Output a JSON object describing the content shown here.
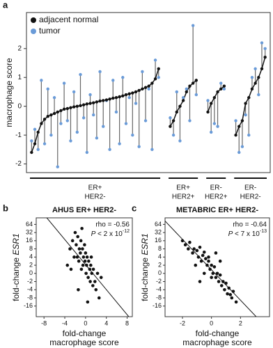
{
  "chart_data": [
    {
      "type": "paired",
      "panel": "a",
      "ylabel": "macrophage score",
      "ylim": [
        -2.3,
        3.25
      ],
      "yticks": [
        -2,
        -1,
        0,
        1,
        2
      ],
      "series": [
        {
          "name": "adjacent normal",
          "color": "#111111"
        },
        {
          "name": "tumor",
          "color": "#6a9bd8"
        }
      ],
      "groups": [
        {
          "label": [
            "ER+",
            "HER2-"
          ],
          "normal": [
            -1.6,
            -1.3,
            -0.9,
            -0.6,
            -0.45,
            -0.35,
            -0.3,
            -0.25,
            -0.2,
            -0.15,
            -0.1,
            -0.08,
            -0.05,
            -0.02,
            0,
            0.02,
            0.05,
            0.08,
            0.1,
            0.12,
            0.15,
            0.18,
            0.2,
            0.22,
            0.25,
            0.28,
            0.3,
            0.33,
            0.36,
            0.4,
            0.43,
            0.46,
            0.5,
            0.55,
            0.6,
            0.65,
            0.7,
            0.8,
            0.95,
            1.3
          ],
          "tumor": [
            -1.2,
            -0.8,
            -1.5,
            0.9,
            -1.3,
            0.6,
            -1.0,
            0.3,
            -2.1,
            -0.6,
            0.8,
            -0.5,
            -1.2,
            0.5,
            -0.9,
            1.1,
            -0.4,
            -1.6,
            0.4,
            -0.3,
            -1.1,
            1.2,
            -0.7,
            0.2,
            -1.5,
            0.9,
            -0.2,
            -1.3,
            1.0,
            -0.6,
            0.3,
            -1.0,
            0.1,
            -1.4,
            1.2,
            -0.5,
            0.6,
            -1.5,
            1.6,
            1.0
          ]
        },
        {
          "label": [
            "ER+",
            "HER2+"
          ],
          "normal": [
            -0.7,
            -0.5,
            -0.2,
            0,
            0.2,
            0.5,
            0.7,
            0.8,
            0.9
          ],
          "tumor": [
            -0.4,
            -1.0,
            0.5,
            -1.2,
            0.3,
            0.6,
            -0.5,
            2.8,
            0.4
          ]
        },
        {
          "label": [
            "ER-",
            "HER2+"
          ],
          "normal": [
            -0.2,
            0.1,
            0.3,
            0.5,
            0.6,
            0.7
          ],
          "tumor": [
            0.2,
            -0.9,
            -0.6,
            -0.7,
            0.8,
            0.6
          ]
        },
        {
          "label": [
            "ER-",
            "HER2-"
          ],
          "normal": [
            -1.0,
            -0.7,
            -0.5,
            0.1,
            0.3,
            0.6,
            0.8,
            1.0,
            1.3,
            1.7
          ],
          "tumor": [
            -0.5,
            -1.6,
            -1.4,
            -0.3,
            -1.0,
            1.0,
            1.3,
            0.4,
            2.2,
            2.0
          ]
        }
      ]
    },
    {
      "type": "scatter",
      "panel": "b",
      "title": "AHUS ER+ HER2-",
      "ylabel": [
        "fold-change",
        "ESR1"
      ],
      "xlabel": [
        "fold-change",
        "macrophage score"
      ],
      "annotation": {
        "rho": "rho = -0.56",
        "p_italic": "P",
        "p_text": " < 2 x 10",
        "p_exp": "-12"
      },
      "color": "#111111",
      "fit_line": true,
      "xlim": [
        -9.5,
        9
      ],
      "xticks": [
        -8,
        -4,
        0,
        4,
        8
      ],
      "ylim": [
        -5.3,
        6.8
      ],
      "yticks": [
        {
          "value": 6,
          "label": "64"
        },
        {
          "value": 5,
          "label": "32"
        },
        {
          "value": 4,
          "label": "16"
        },
        {
          "value": 3,
          "label": "8"
        },
        {
          "value": 2,
          "label": "4"
        },
        {
          "value": 1,
          "label": "2"
        },
        0,
        {
          "value": -1,
          "label": "-2"
        },
        {
          "value": -2,
          "label": "-4"
        },
        {
          "value": -3,
          "label": "-8"
        },
        {
          "value": -4,
          "label": "-16"
        }
      ],
      "x": [
        -3.5,
        -3,
        -2.8,
        -2.5,
        -2.2,
        -2,
        -1.8,
        -1.6,
        -1.5,
        -1.3,
        -1.2,
        -1,
        -0.9,
        -0.8,
        -0.6,
        -0.5,
        -0.4,
        -0.2,
        -0.1,
        0,
        0.1,
        0.2,
        0.3,
        0.5,
        0.6,
        0.8,
        0.9,
        1,
        1.2,
        1.4,
        1.5,
        1.8,
        2,
        2.3,
        2.6,
        3,
        -1.4,
        -0.7,
        0.4,
        1.1
      ],
      "values": [
        1,
        3,
        0.5,
        4,
        2,
        5,
        3.5,
        2,
        4.5,
        1.5,
        3,
        2.5,
        4,
        0.5,
        3,
        1,
        2,
        3.5,
        1.5,
        2.5,
        0,
        1,
        2,
        -0.5,
        1.5,
        0.5,
        -1,
        1,
        0,
        -1.5,
        0.5,
        -1,
        -2,
        0,
        -3,
        -0.5,
        -2,
        5.5,
        -3.5,
        2
      ]
    },
    {
      "type": "scatter",
      "panel": "c",
      "title": "METABRIC ER+ HER2-",
      "ylabel": [
        "fold-change",
        "ESR1"
      ],
      "xlabel": [
        "fold-change",
        "macrophage score"
      ],
      "annotation": {
        "rho": "rho = -0.64",
        "p_italic": "P",
        "p_text": " < 7 x 10",
        "p_exp": "-13"
      },
      "color": "#111111",
      "fit_line": true,
      "xlim": [
        -3.2,
        4
      ],
      "xticks": [
        -2,
        0,
        2
      ],
      "ylim": [
        -5.3,
        6.8
      ],
      "yticks": [
        {
          "value": 6,
          "label": "64"
        },
        {
          "value": 5,
          "label": "32"
        },
        {
          "value": 4,
          "label": "16"
        },
        {
          "value": 3,
          "label": "8"
        },
        {
          "value": 2,
          "label": "4"
        },
        {
          "value": 1,
          "label": "2"
        },
        0,
        {
          "value": -1,
          "label": "-2"
        },
        {
          "value": -2,
          "label": "-4"
        },
        {
          "value": -3,
          "label": "-8"
        },
        {
          "value": -4,
          "label": "-16"
        }
      ],
      "x": [
        -2,
        -1.8,
        -1.6,
        -1.5,
        -1.3,
        -1.2,
        -1.0,
        -0.9,
        -0.8,
        -0.7,
        -0.6,
        -0.5,
        -0.4,
        -0.3,
        -0.2,
        -0.1,
        0,
        0.1,
        0.2,
        0.3,
        0.4,
        0.5,
        0.6,
        0.7,
        0.8,
        0.9,
        1,
        1.1,
        1.2,
        1.4,
        1.5,
        1.7,
        -1.1,
        -0.5,
        0,
        0.3,
        0.6,
        -0.8,
        1.3,
        -0.2
      ],
      "values": [
        4,
        3.5,
        3,
        3.8,
        2.5,
        3,
        2.8,
        2,
        3.2,
        1.5,
        2.2,
        2.6,
        1.8,
        1,
        1.5,
        0.5,
        1,
        0,
        0.8,
        -0.5,
        0,
        -1,
        -0.2,
        -1.5,
        -1,
        -2,
        -1.2,
        -2.5,
        -1.8,
        -3,
        -2.2,
        -3.5,
        1,
        0,
        -0.5,
        2.5,
        1.5,
        -1,
        -2.6,
        2
      ]
    }
  ]
}
